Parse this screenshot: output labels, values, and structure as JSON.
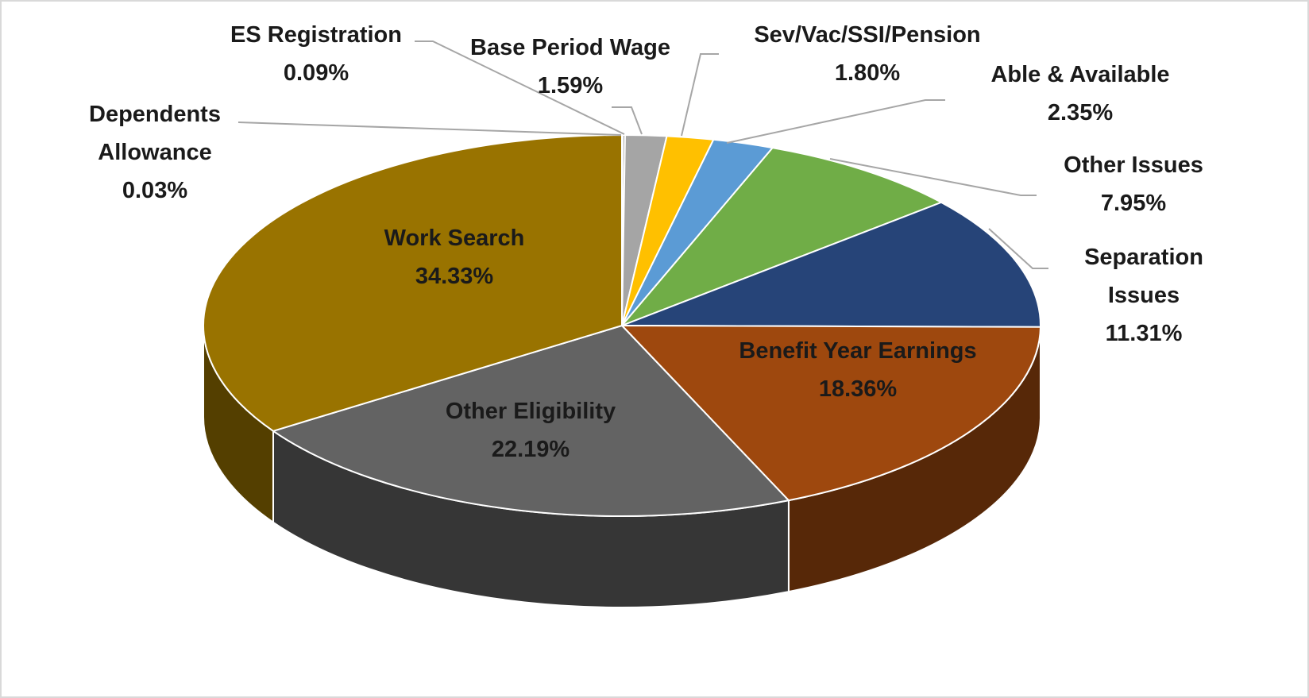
{
  "chart_data": {
    "type": "pie",
    "categories": [
      "Dependents Allowance",
      "ES Registration",
      "Base Period Wage",
      "Sev/Vac/SSI/Pension",
      "Able & Available",
      "Other Issues",
      "Separation Issues",
      "Benefit Year Earnings",
      "Other Eligibility",
      "Work Search"
    ],
    "values": [
      0.03,
      0.09,
      1.59,
      1.8,
      2.35,
      7.95,
      11.31,
      18.36,
      22.19,
      34.33
    ],
    "value_labels": [
      "0.03%",
      "0.09%",
      "1.59%",
      "1.80%",
      "2.35%",
      "7.95%",
      "11.31%",
      "18.36%",
      "22.19%",
      "34.33%"
    ],
    "colors": [
      "#7f7f7f",
      "#8c8c8c",
      "#a5a5a5",
      "#ffc000",
      "#5b9bd5",
      "#70ad47",
      "#264478",
      "#9e480e",
      "#636363",
      "#997300"
    ]
  }
}
